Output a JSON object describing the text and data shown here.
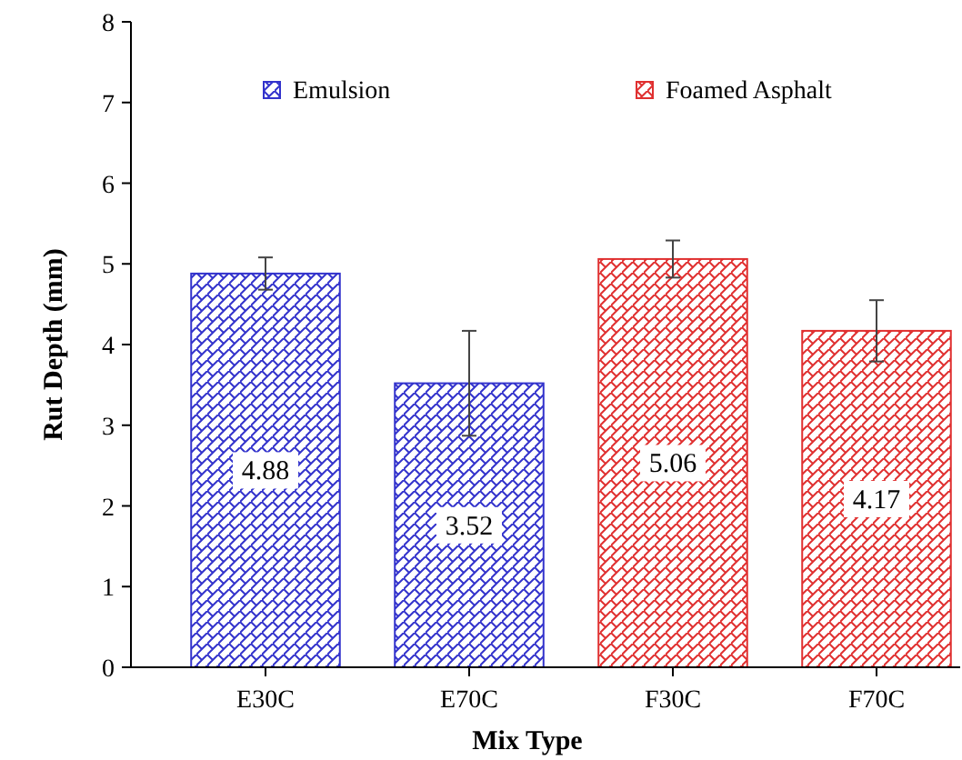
{
  "chart_data": {
    "type": "bar",
    "xlabel": "Mix Type",
    "ylabel": "Rut Depth (mm)",
    "categories": [
      "E30C",
      "E70C",
      "F30C",
      "F70C"
    ],
    "series": [
      {
        "name": "Emulsion",
        "color": "#3333cc",
        "values": [
          4.88,
          3.52,
          null,
          null
        ],
        "errors": [
          0.2,
          0.65,
          null,
          null
        ]
      },
      {
        "name": "Foamed Asphalt",
        "color": "#e03030",
        "values": [
          null,
          null,
          5.06,
          4.17
        ],
        "errors": [
          null,
          null,
          0.23,
          0.38
        ]
      }
    ],
    "ylim": [
      0,
      8
    ],
    "yticks": [
      0,
      1,
      2,
      3,
      4,
      5,
      6,
      7,
      8
    ],
    "grid": false,
    "legend": "top",
    "data_labels": true
  }
}
